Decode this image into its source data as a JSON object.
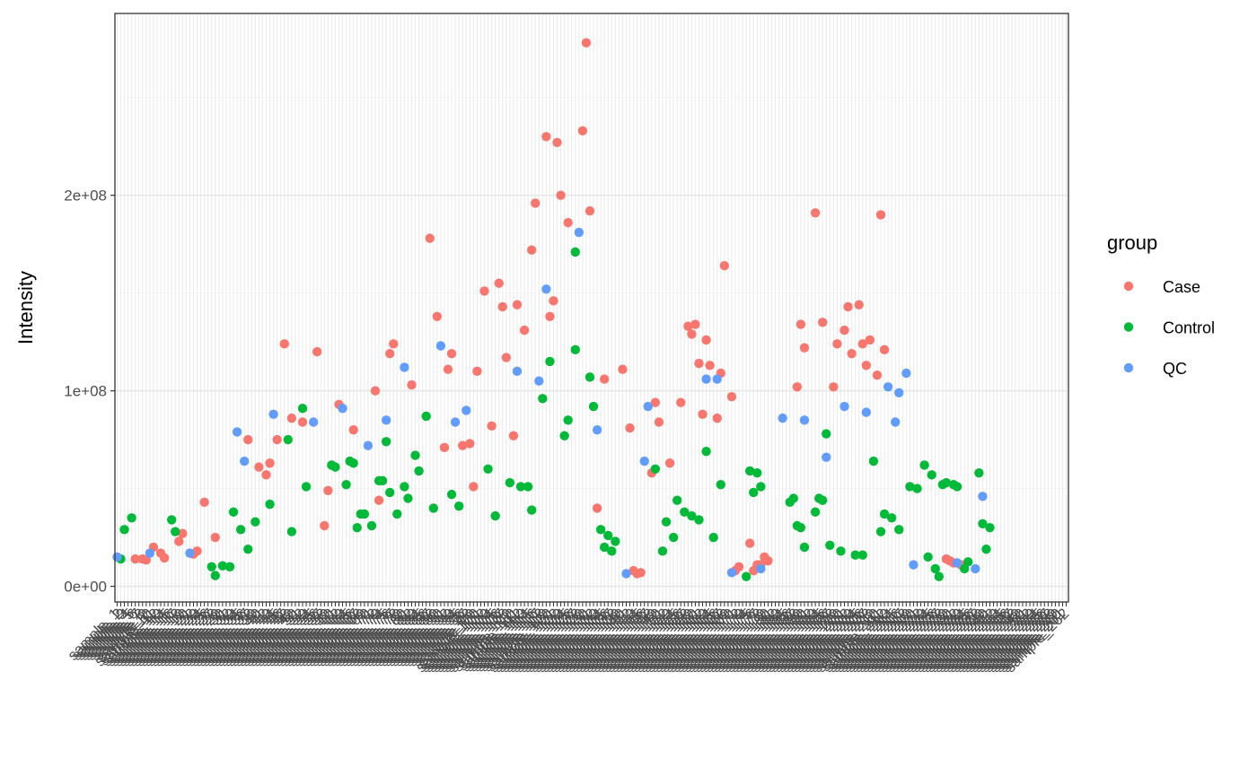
{
  "chart_data": {
    "type": "scatter",
    "ylabel": "Intensity",
    "xlabel": "",
    "ylim": [
      -8000000,
      293000000
    ],
    "y_ticks": [
      0,
      100000000,
      200000000
    ],
    "y_tick_labels": [
      "0e+00",
      "1e+08",
      "2e+08"
    ],
    "x_tick_label_prefix": "sample_",
    "legend": {
      "title": "group",
      "placement": "right",
      "entries": [
        "Case",
        "Control",
        "QC"
      ]
    },
    "colors": {
      "Case": "#F8766D",
      "Control": "#00BA38",
      "QC": "#619CFF"
    },
    "grid": true,
    "x_count": 262,
    "series": [
      {
        "name": "Case",
        "points": [
          [
            6,
            14000000
          ],
          [
            8,
            14000000
          ],
          [
            9,
            13500000
          ],
          [
            11,
            20000000
          ],
          [
            13,
            17000000
          ],
          [
            14,
            14500000
          ],
          [
            18,
            23000000
          ],
          [
            19,
            27000000
          ],
          [
            22,
            16500000
          ],
          [
            23,
            18000000
          ],
          [
            25,
            43000000
          ],
          [
            28,
            25000000
          ],
          [
            37,
            75000000
          ],
          [
            40,
            61000000
          ],
          [
            42,
            57000000
          ],
          [
            43,
            63000000
          ],
          [
            45,
            75000000
          ],
          [
            47,
            124000000
          ],
          [
            49,
            86000000
          ],
          [
            52,
            84000000
          ],
          [
            56,
            120000000
          ],
          [
            58,
            31000000
          ],
          [
            59,
            49000000
          ],
          [
            60,
            62000000
          ],
          [
            62,
            93000000
          ],
          [
            66,
            80000000
          ],
          [
            72,
            100000000
          ],
          [
            73,
            44000000
          ],
          [
            76,
            119000000
          ],
          [
            77,
            124000000
          ],
          [
            82,
            103000000
          ],
          [
            87,
            178000000
          ],
          [
            89,
            138000000
          ],
          [
            91,
            71000000
          ],
          [
            92,
            111000000
          ],
          [
            93,
            119000000
          ],
          [
            96,
            72000000
          ],
          [
            98,
            73000000
          ],
          [
            99,
            51000000
          ],
          [
            100,
            110000000
          ],
          [
            102,
            151000000
          ],
          [
            104,
            82000000
          ],
          [
            106,
            155000000
          ],
          [
            107,
            143000000
          ],
          [
            108,
            117000000
          ],
          [
            110,
            77000000
          ],
          [
            111,
            144000000
          ],
          [
            113,
            131000000
          ],
          [
            115,
            172000000
          ],
          [
            116,
            196000000
          ],
          [
            119,
            230000000
          ],
          [
            120,
            138000000
          ],
          [
            121,
            146000000
          ],
          [
            122,
            227000000
          ],
          [
            123,
            200000000
          ],
          [
            125,
            186000000
          ],
          [
            129,
            233000000
          ],
          [
            130,
            278000000
          ],
          [
            131,
            192000000
          ],
          [
            133,
            40000000
          ],
          [
            135,
            106000000
          ],
          [
            140,
            111000000
          ],
          [
            142,
            81000000
          ],
          [
            143,
            8000000
          ],
          [
            144,
            6500000
          ],
          [
            145,
            7000000
          ],
          [
            148,
            58000000
          ],
          [
            149,
            94000000
          ],
          [
            150,
            84000000
          ],
          [
            153,
            63000000
          ],
          [
            156,
            94000000
          ],
          [
            158,
            133000000
          ],
          [
            159,
            129000000
          ],
          [
            160,
            134000000
          ],
          [
            161,
            114000000
          ],
          [
            162,
            88000000
          ],
          [
            163,
            126000000
          ],
          [
            164,
            113000000
          ],
          [
            166,
            86000000
          ],
          [
            167,
            109000000
          ],
          [
            168,
            164000000
          ],
          [
            170,
            97000000
          ],
          [
            171,
            8000000
          ],
          [
            172,
            10000000
          ],
          [
            175,
            22000000
          ],
          [
            176,
            8000000
          ],
          [
            177,
            11000000
          ],
          [
            178,
            11000000
          ],
          [
            179,
            15000000
          ],
          [
            180,
            13000000
          ],
          [
            188,
            102000000
          ],
          [
            189,
            134000000
          ],
          [
            190,
            122000000
          ],
          [
            193,
            191000000
          ],
          [
            195,
            135000000
          ],
          [
            198,
            102000000
          ],
          [
            199,
            124000000
          ],
          [
            201,
            131000000
          ],
          [
            202,
            143000000
          ],
          [
            203,
            119000000
          ],
          [
            205,
            144000000
          ],
          [
            206,
            124000000
          ],
          [
            207,
            113000000
          ],
          [
            208,
            126000000
          ],
          [
            210,
            108000000
          ],
          [
            211,
            190000000
          ],
          [
            212,
            121000000
          ],
          [
            229,
            14000000
          ],
          [
            230,
            13000000
          ],
          [
            231,
            12000000
          ],
          [
            233,
            11000000
          ]
        ]
      },
      {
        "name": "Control",
        "points": [
          [
            2,
            14000000
          ],
          [
            3,
            29000000
          ],
          [
            5,
            35000000
          ],
          [
            16,
            34000000
          ],
          [
            17,
            28000000
          ],
          [
            27,
            10000000
          ],
          [
            28,
            5500000
          ],
          [
            30,
            10500000
          ],
          [
            32,
            10000000
          ],
          [
            33,
            38000000
          ],
          [
            35,
            29000000
          ],
          [
            37,
            19000000
          ],
          [
            39,
            33000000
          ],
          [
            43,
            42000000
          ],
          [
            48,
            75000000
          ],
          [
            49,
            28000000
          ],
          [
            52,
            91000000
          ],
          [
            53,
            51000000
          ],
          [
            60,
            62000000
          ],
          [
            61,
            61000000
          ],
          [
            64,
            52000000
          ],
          [
            65,
            64000000
          ],
          [
            66,
            63000000
          ],
          [
            67,
            30000000
          ],
          [
            68,
            37000000
          ],
          [
            69,
            37000000
          ],
          [
            71,
            31000000
          ],
          [
            73,
            54000000
          ],
          [
            74,
            54000000
          ],
          [
            75,
            74000000
          ],
          [
            76,
            48000000
          ],
          [
            78,
            37000000
          ],
          [
            80,
            51000000
          ],
          [
            81,
            45000000
          ],
          [
            83,
            67000000
          ],
          [
            84,
            59000000
          ],
          [
            86,
            87000000
          ],
          [
            88,
            40000000
          ],
          [
            93,
            47000000
          ],
          [
            95,
            41000000
          ],
          [
            103,
            60000000
          ],
          [
            105,
            36000000
          ],
          [
            109,
            53000000
          ],
          [
            112,
            51000000
          ],
          [
            114,
            51000000
          ],
          [
            115,
            39000000
          ],
          [
            118,
            96000000
          ],
          [
            120,
            115000000
          ],
          [
            124,
            77000000
          ],
          [
            125,
            85000000
          ],
          [
            127,
            171000000
          ],
          [
            127,
            121000000
          ],
          [
            131,
            107000000
          ],
          [
            132,
            92000000
          ],
          [
            134,
            29000000
          ],
          [
            135,
            20000000
          ],
          [
            136,
            26000000
          ],
          [
            137,
            18000000
          ],
          [
            138,
            23000000
          ],
          [
            149,
            60000000
          ],
          [
            151,
            18000000
          ],
          [
            152,
            33000000
          ],
          [
            154,
            25000000
          ],
          [
            155,
            44000000
          ],
          [
            157,
            38000000
          ],
          [
            159,
            36000000
          ],
          [
            161,
            34000000
          ],
          [
            163,
            69000000
          ],
          [
            165,
            25000000
          ],
          [
            167,
            52000000
          ],
          [
            174,
            5000000
          ],
          [
            175,
            59000000
          ],
          [
            176,
            48000000
          ],
          [
            177,
            58000000
          ],
          [
            178,
            51000000
          ],
          [
            186,
            43000000
          ],
          [
            187,
            45000000
          ],
          [
            188,
            31000000
          ],
          [
            189,
            30000000
          ],
          [
            190,
            20000000
          ],
          [
            193,
            38000000
          ],
          [
            194,
            45000000
          ],
          [
            195,
            44000000
          ],
          [
            196,
            78000000
          ],
          [
            197,
            21000000
          ],
          [
            200,
            18000000
          ],
          [
            204,
            16000000
          ],
          [
            206,
            16000000
          ],
          [
            209,
            64000000
          ],
          [
            211,
            28000000
          ],
          [
            212,
            37000000
          ],
          [
            214,
            35000000
          ],
          [
            216,
            29000000
          ],
          [
            219,
            51000000
          ],
          [
            221,
            50000000
          ],
          [
            223,
            62000000
          ],
          [
            224,
            15000000
          ],
          [
            225,
            57000000
          ],
          [
            226,
            9000000
          ],
          [
            227,
            5000000
          ],
          [
            228,
            52000000
          ],
          [
            229,
            53000000
          ],
          [
            231,
            52000000
          ],
          [
            232,
            51000000
          ],
          [
            234,
            9000000
          ],
          [
            235,
            12500000
          ],
          [
            238,
            58000000
          ],
          [
            239,
            32000000
          ],
          [
            240,
            19000000
          ],
          [
            241,
            30000000
          ]
        ]
      },
      {
        "name": "QC",
        "points": [
          [
            1,
            15000000
          ],
          [
            10,
            17000000
          ],
          [
            21,
            17000000
          ],
          [
            34,
            79000000
          ],
          [
            36,
            64000000
          ],
          [
            44,
            88000000
          ],
          [
            55,
            84000000
          ],
          [
            63,
            91000000
          ],
          [
            70,
            72000000
          ],
          [
            75,
            85000000
          ],
          [
            80,
            112000000
          ],
          [
            90,
            123000000
          ],
          [
            94,
            84000000
          ],
          [
            97,
            90000000
          ],
          [
            111,
            110000000
          ],
          [
            117,
            105000000
          ],
          [
            119,
            152000000
          ],
          [
            128,
            181000000
          ],
          [
            133,
            80000000
          ],
          [
            141,
            6500000
          ],
          [
            146,
            64000000
          ],
          [
            147,
            92000000
          ],
          [
            163,
            106000000
          ],
          [
            166,
            106000000
          ],
          [
            170,
            7000000
          ],
          [
            178,
            9000000
          ],
          [
            184,
            86000000
          ],
          [
            190,
            85000000
          ],
          [
            196,
            66000000
          ],
          [
            201,
            92000000
          ],
          [
            207,
            89000000
          ],
          [
            213,
            102000000
          ],
          [
            215,
            84000000
          ],
          [
            216,
            99000000
          ],
          [
            218,
            109000000
          ],
          [
            220,
            11000000
          ],
          [
            232,
            12000000
          ],
          [
            237,
            9000000
          ],
          [
            239,
            46000000
          ]
        ]
      }
    ]
  }
}
